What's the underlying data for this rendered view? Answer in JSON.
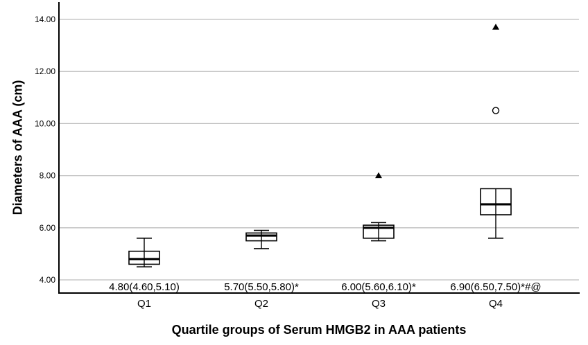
{
  "chart_data": {
    "type": "boxplot",
    "title": "",
    "xlabel": "Quartile groups of Serum HMGB2 in AAA patients",
    "ylabel": "Diameters of AAA (cm)",
    "ylim": [
      4,
      14
    ],
    "ytick_values": [
      4,
      6,
      8,
      10,
      12,
      14
    ],
    "yticks": [
      "4.00",
      "6.00",
      "8.00",
      "10.00",
      "12.00",
      "14.00"
    ],
    "grid": true,
    "legend": "none",
    "categories": [
      "Q1",
      "Q2",
      "Q3",
      "Q4"
    ],
    "boxes": [
      {
        "category": "Q1",
        "median": 4.8,
        "q1": 4.6,
        "q3": 5.1,
        "whisker_low": 4.5,
        "whisker_high": 5.6,
        "outliers_circle": [],
        "outliers_triangle": [],
        "annotation": "4.80(4.60,5.10)"
      },
      {
        "category": "Q2",
        "median": 5.7,
        "q1": 5.5,
        "q3": 5.8,
        "whisker_low": 5.2,
        "whisker_high": 5.9,
        "outliers_circle": [],
        "outliers_triangle": [],
        "annotation": "5.70(5.50,5.80)*"
      },
      {
        "category": "Q3",
        "median": 6.0,
        "q1": 5.6,
        "q3": 6.1,
        "whisker_low": 5.5,
        "whisker_high": 6.2,
        "outliers_circle": [],
        "outliers_triangle": [
          8.0
        ],
        "annotation": "6.00(5.60,6.10)*"
      },
      {
        "category": "Q4",
        "median": 6.9,
        "q1": 6.5,
        "q3": 7.5,
        "whisker_low": 5.6,
        "whisker_high": 7.5,
        "outliers_circle": [
          10.5
        ],
        "outliers_triangle": [
          13.7
        ],
        "annotation": "6.90(6.50,7.50)*#@"
      }
    ],
    "colors": {
      "background": "#ffffff",
      "box_fill": "#ffffff",
      "line": "#000000",
      "gridline": "#bdbdbd",
      "text": "#000000"
    }
  }
}
